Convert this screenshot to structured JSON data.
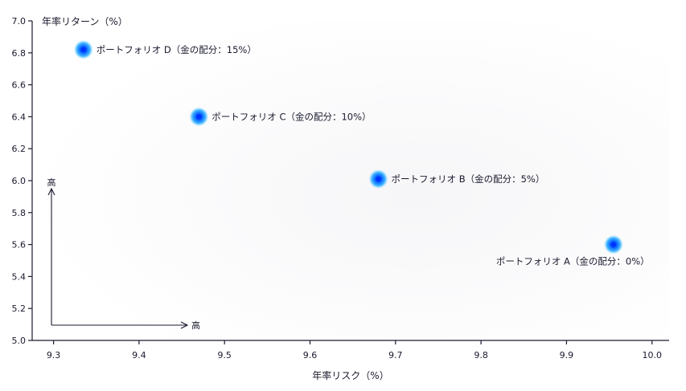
{
  "chart_data": {
    "type": "scatter",
    "xlabel": "年率リスク（%）",
    "ylabel": "年率リターン（%）",
    "xlim": [
      9.275,
      10.02
    ],
    "ylim": [
      5.0,
      7.0
    ],
    "x_ticks": [
      "9.3",
      "9.4",
      "9.5",
      "9.6",
      "9.7",
      "9.8",
      "9.9",
      "10.0"
    ],
    "y_ticks": [
      "5.0",
      "5.2",
      "5.4",
      "5.6",
      "5.8",
      "6.0",
      "6.2",
      "6.4",
      "6.6",
      "6.8",
      "7.0"
    ],
    "grid": false,
    "points": [
      {
        "label": "ポートフォリオ A（金の配分：0%）",
        "x": 9.955,
        "y": 5.6,
        "label_pos": "below"
      },
      {
        "label": "ポートフォリオ B（金の配分：5%）",
        "x": 9.68,
        "y": 6.01,
        "label_pos": "right"
      },
      {
        "label": "ポートフォリオ C（金の配分：10%）",
        "x": 9.47,
        "y": 6.4,
        "label_pos": "right"
      },
      {
        "label": "ポートフォリオ D（金の配分：15%）",
        "x": 9.335,
        "y": 6.82,
        "label_pos": "right"
      }
    ],
    "guide": {
      "x_label": "高",
      "y_label": "高"
    },
    "colors": {
      "point_core": "#0033ff",
      "point_glow": "#00aaff",
      "axis": "#1a1a2e"
    }
  }
}
